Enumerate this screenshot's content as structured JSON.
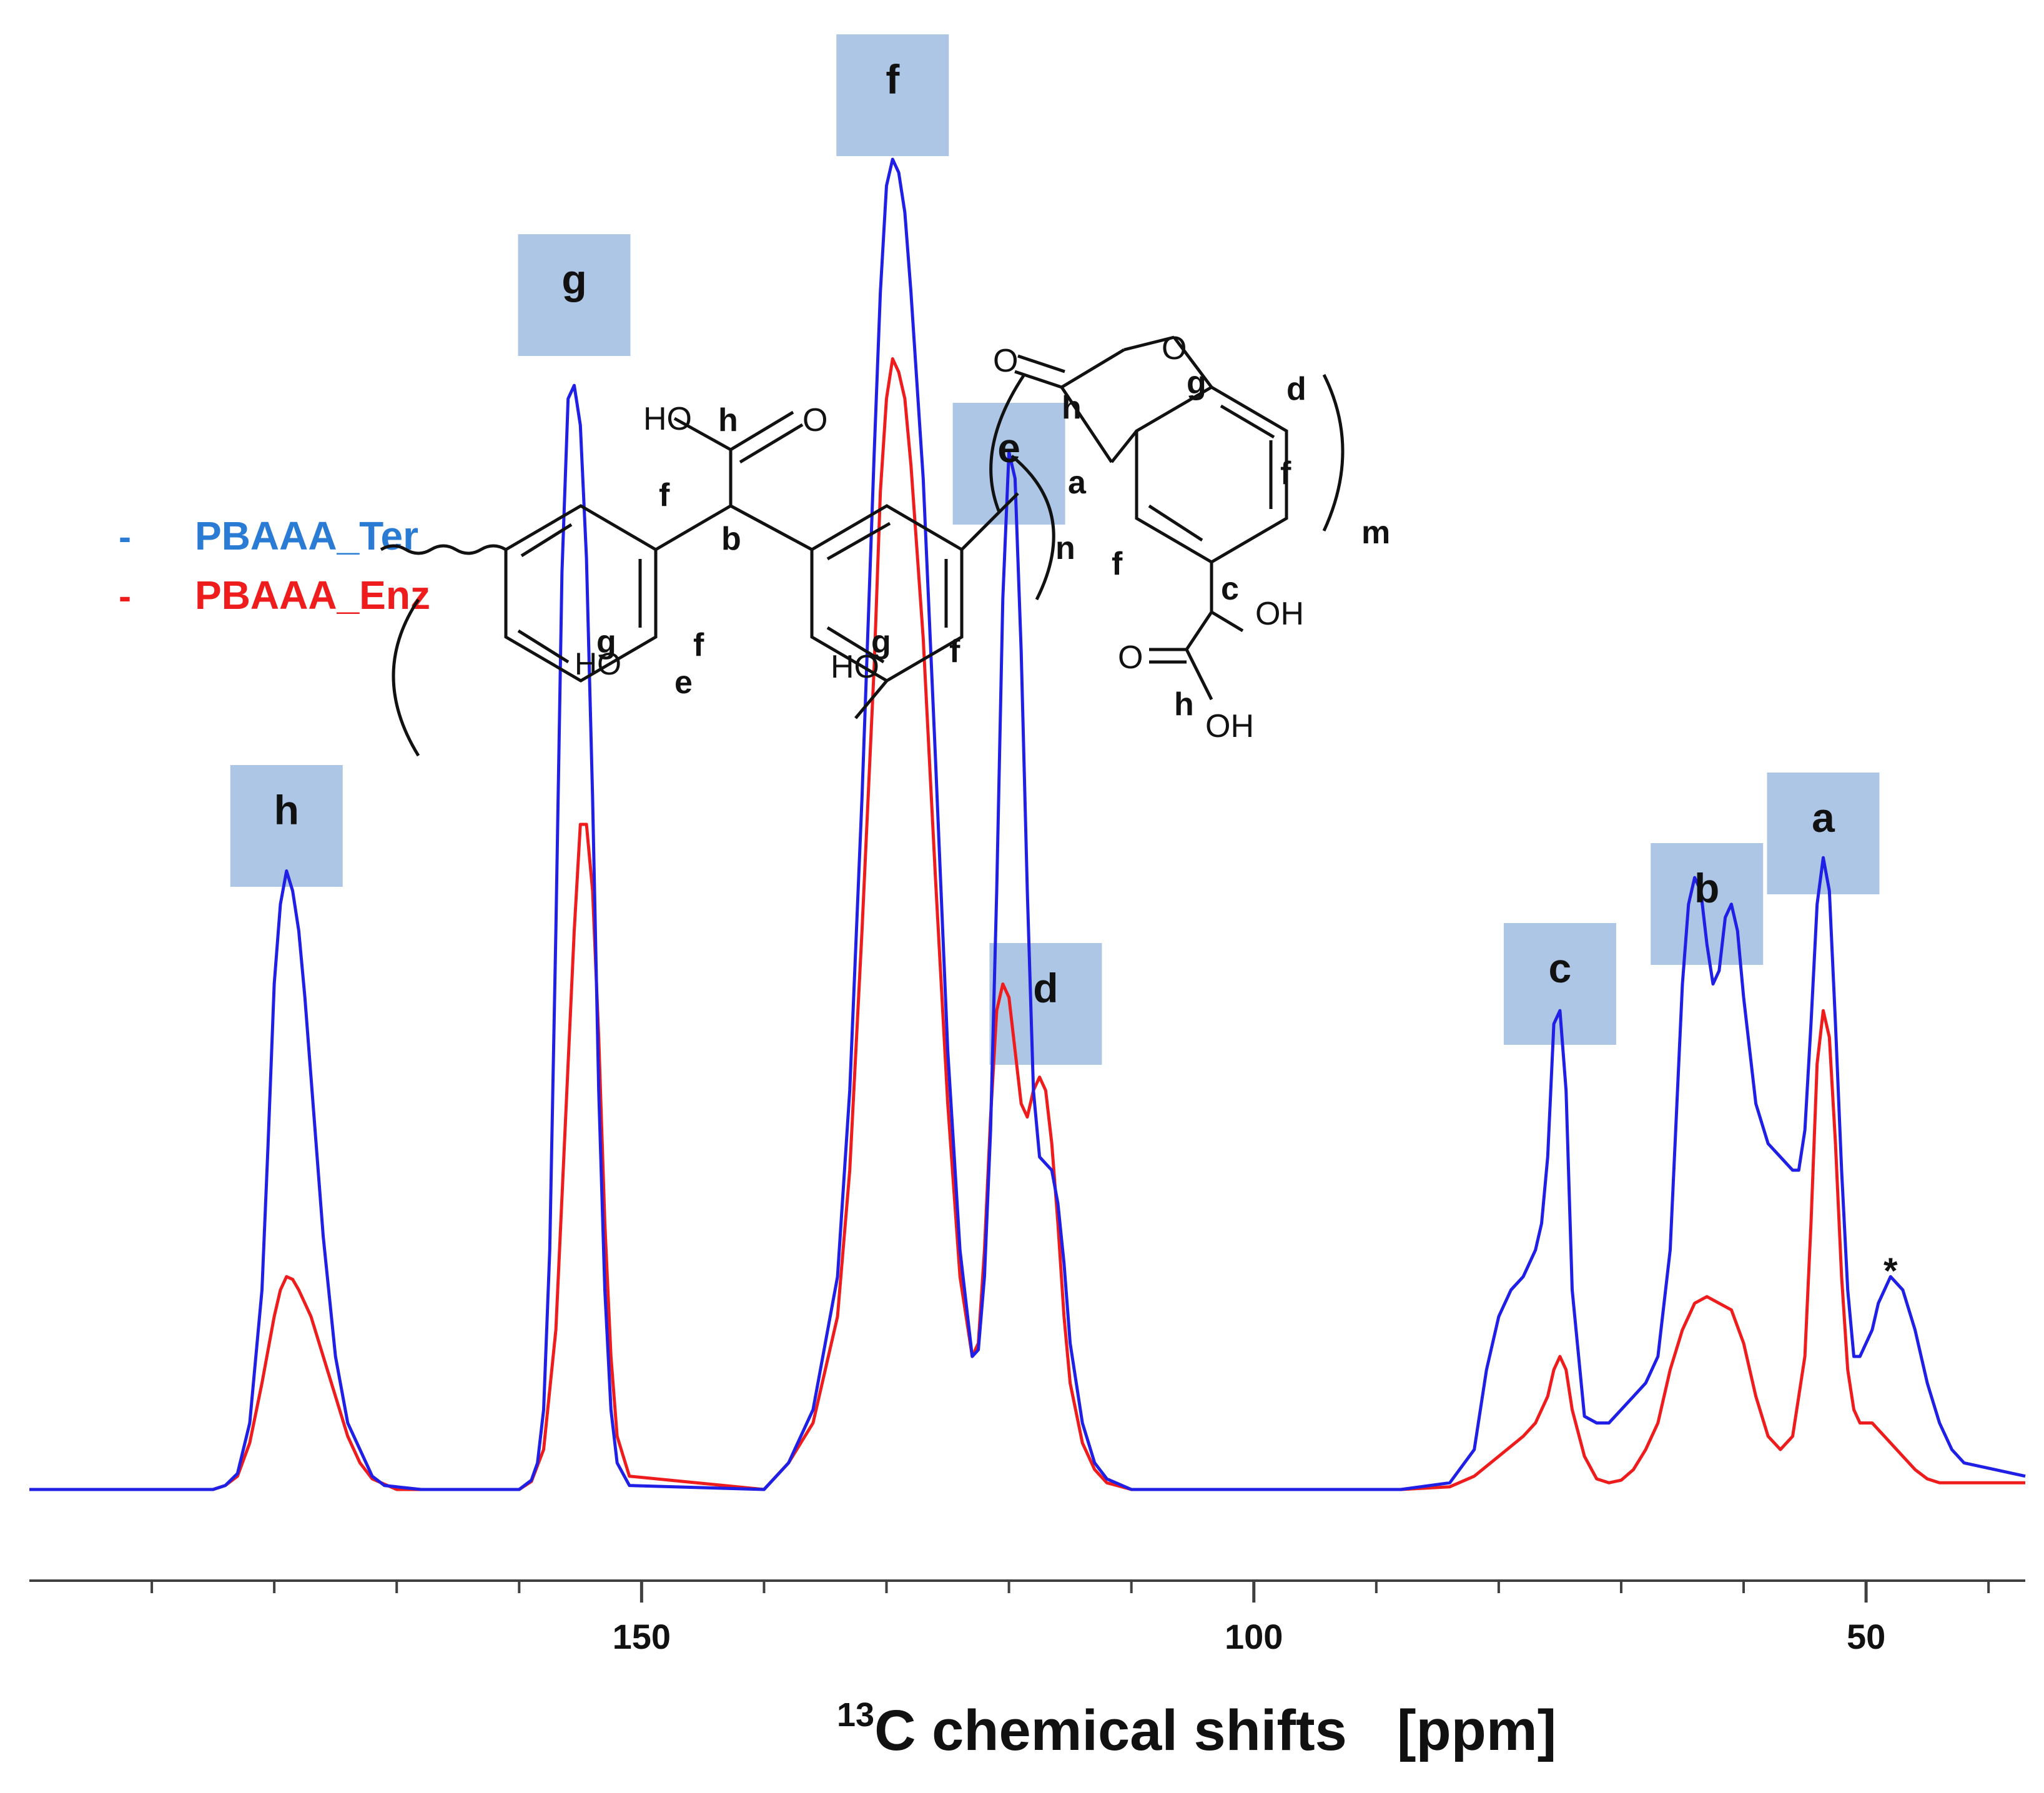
{
  "chart_data": {
    "type": "line",
    "title": "",
    "xlabel": "chemical shifts",
    "xlabel_superscript": "13",
    "xlabel_element": "C",
    "xunit": "[ppm]",
    "ylabel": "",
    "x_reversed": true,
    "xlim": [
      200,
      37
    ],
    "ylim": [
      0,
      1
    ],
    "xticks_major": [
      150,
      100,
      50
    ],
    "xticks_minor": [
      190,
      180,
      170,
      160,
      140,
      130,
      120,
      110,
      90,
      80,
      70,
      60,
      40
    ],
    "grid": false,
    "legend_position": "left",
    "series": [
      {
        "name": "PBAAA_Ter",
        "color": "#1f1fe6",
        "legend_color": "#2a7bd4",
        "points": [
          [
            200,
            0.0
          ],
          [
            185,
            0.0
          ],
          [
            184,
            0.003
          ],
          [
            183,
            0.012
          ],
          [
            182,
            0.05
          ],
          [
            181,
            0.15
          ],
          [
            180.5,
            0.26
          ],
          [
            180,
            0.38
          ],
          [
            179.5,
            0.44
          ],
          [
            179,
            0.465
          ],
          [
            178.5,
            0.45
          ],
          [
            178,
            0.42
          ],
          [
            177.5,
            0.37
          ],
          [
            177,
            0.31
          ],
          [
            176.5,
            0.25
          ],
          [
            176,
            0.19
          ],
          [
            175,
            0.1
          ],
          [
            174,
            0.05
          ],
          [
            173,
            0.03
          ],
          [
            172,
            0.01
          ],
          [
            171,
            0.003
          ],
          [
            168,
            0.0
          ],
          [
            160,
            0.0
          ],
          [
            159,
            0.007
          ],
          [
            158.5,
            0.02
          ],
          [
            158,
            0.06
          ],
          [
            157.5,
            0.18
          ],
          [
            157,
            0.42
          ],
          [
            156.5,
            0.69
          ],
          [
            156,
            0.82
          ],
          [
            155.5,
            0.83
          ],
          [
            155,
            0.8
          ],
          [
            154.5,
            0.7
          ],
          [
            154,
            0.52
          ],
          [
            153.5,
            0.3
          ],
          [
            153,
            0.15
          ],
          [
            152.5,
            0.06
          ],
          [
            152,
            0.02
          ],
          [
            151,
            0.003
          ],
          [
            140,
            0.0
          ],
          [
            138,
            0.02
          ],
          [
            136,
            0.06
          ],
          [
            134,
            0.16
          ],
          [
            133,
            0.3
          ],
          [
            132,
            0.52
          ],
          [
            131,
            0.78
          ],
          [
            130.5,
            0.9
          ],
          [
            130,
            0.98
          ],
          [
            129.5,
            1.0
          ],
          [
            129,
            0.99
          ],
          [
            128.5,
            0.96
          ],
          [
            128,
            0.9
          ],
          [
            127,
            0.76
          ],
          [
            126,
            0.55
          ],
          [
            125,
            0.33
          ],
          [
            124,
            0.18
          ],
          [
            123,
            0.1
          ],
          [
            122.5,
            0.105
          ],
          [
            122,
            0.16
          ],
          [
            121.5,
            0.27
          ],
          [
            121,
            0.45
          ],
          [
            120.5,
            0.67
          ],
          [
            120,
            0.78
          ],
          [
            119.5,
            0.76
          ],
          [
            119,
            0.63
          ],
          [
            118.5,
            0.45
          ],
          [
            118,
            0.3
          ],
          [
            117.5,
            0.25
          ],
          [
            117,
            0.245
          ],
          [
            116.5,
            0.24
          ],
          [
            116,
            0.215
          ],
          [
            115.5,
            0.17
          ],
          [
            115,
            0.11
          ],
          [
            114,
            0.05
          ],
          [
            113,
            0.02
          ],
          [
            112,
            0.008
          ],
          [
            110,
            0.0
          ],
          [
            88,
            0.0
          ],
          [
            84,
            0.005
          ],
          [
            82,
            0.03
          ],
          [
            81,
            0.09
          ],
          [
            80,
            0.13
          ],
          [
            79,
            0.15
          ],
          [
            78,
            0.16
          ],
          [
            77,
            0.18
          ],
          [
            76.5,
            0.2
          ],
          [
            76,
            0.25
          ],
          [
            75.5,
            0.35
          ],
          [
            75,
            0.36
          ],
          [
            74.5,
            0.3
          ],
          [
            74,
            0.15
          ],
          [
            73,
            0.055
          ],
          [
            72,
            0.05
          ],
          [
            71,
            0.05
          ],
          [
            70,
            0.06
          ],
          [
            69,
            0.07
          ],
          [
            68,
            0.08
          ],
          [
            67,
            0.1
          ],
          [
            66,
            0.18
          ],
          [
            65.5,
            0.28
          ],
          [
            65,
            0.38
          ],
          [
            64.5,
            0.44
          ],
          [
            64,
            0.46
          ],
          [
            63.5,
            0.45
          ],
          [
            63,
            0.41
          ],
          [
            62.5,
            0.38
          ],
          [
            62,
            0.39
          ],
          [
            61.5,
            0.43
          ],
          [
            61,
            0.44
          ],
          [
            60.5,
            0.42
          ],
          [
            60,
            0.37
          ],
          [
            59,
            0.29
          ],
          [
            58,
            0.26
          ],
          [
            57,
            0.25
          ],
          [
            56,
            0.24
          ],
          [
            55.5,
            0.24
          ],
          [
            55,
            0.27
          ],
          [
            54.5,
            0.35
          ],
          [
            54,
            0.44
          ],
          [
            53.5,
            0.475
          ],
          [
            53,
            0.45
          ],
          [
            52.5,
            0.35
          ],
          [
            52,
            0.24
          ],
          [
            51.5,
            0.15
          ],
          [
            51,
            0.1
          ],
          [
            50.5,
            0.1
          ],
          [
            50,
            0.11
          ],
          [
            49.5,
            0.12
          ],
          [
            49,
            0.14
          ],
          [
            48,
            0.16
          ],
          [
            47,
            0.15
          ],
          [
            46,
            0.12
          ],
          [
            45,
            0.08
          ],
          [
            44,
            0.05
          ],
          [
            43,
            0.03
          ],
          [
            42,
            0.02
          ],
          [
            37,
            0.01
          ]
        ]
      },
      {
        "name": "PBAAA_Enz",
        "color": "#ee1c1c",
        "legend_color": "#ee1c1c",
        "points": [
          [
            200,
            0.0
          ],
          [
            185,
            0.0
          ],
          [
            184,
            0.003
          ],
          [
            183,
            0.01
          ],
          [
            182,
            0.035
          ],
          [
            181,
            0.08
          ],
          [
            180,
            0.13
          ],
          [
            179.5,
            0.15
          ],
          [
            179,
            0.16
          ],
          [
            178.5,
            0.158
          ],
          [
            178,
            0.15
          ],
          [
            177,
            0.13
          ],
          [
            176,
            0.1
          ],
          [
            175,
            0.07
          ],
          [
            174,
            0.04
          ],
          [
            173,
            0.02
          ],
          [
            172,
            0.008
          ],
          [
            170,
            0.0
          ],
          [
            160,
            0.0
          ],
          [
            159,
            0.006
          ],
          [
            158,
            0.03
          ],
          [
            157,
            0.12
          ],
          [
            156.5,
            0.22
          ],
          [
            156,
            0.32
          ],
          [
            155.5,
            0.42
          ],
          [
            155,
            0.5
          ],
          [
            154.5,
            0.5
          ],
          [
            154,
            0.45
          ],
          [
            153.5,
            0.34
          ],
          [
            153,
            0.2
          ],
          [
            152.5,
            0.1
          ],
          [
            152,
            0.04
          ],
          [
            151,
            0.01
          ],
          [
            140,
            0.0
          ],
          [
            138,
            0.02
          ],
          [
            136,
            0.05
          ],
          [
            134,
            0.13
          ],
          [
            133,
            0.24
          ],
          [
            132,
            0.42
          ],
          [
            131,
            0.62
          ],
          [
            130.5,
            0.75
          ],
          [
            130,
            0.82
          ],
          [
            129.5,
            0.85
          ],
          [
            129,
            0.84
          ],
          [
            128.5,
            0.82
          ],
          [
            128,
            0.77
          ],
          [
            127,
            0.64
          ],
          [
            126,
            0.46
          ],
          [
            125,
            0.29
          ],
          [
            124,
            0.16
          ],
          [
            123,
            0.1
          ],
          [
            122.5,
            0.11
          ],
          [
            122,
            0.18
          ],
          [
            121.5,
            0.28
          ],
          [
            121,
            0.36
          ],
          [
            120.5,
            0.38
          ],
          [
            120,
            0.37
          ],
          [
            119.5,
            0.33
          ],
          [
            119,
            0.29
          ],
          [
            118.5,
            0.28
          ],
          [
            118,
            0.3
          ],
          [
            117.5,
            0.31
          ],
          [
            117,
            0.3
          ],
          [
            116.5,
            0.26
          ],
          [
            116,
            0.2
          ],
          [
            115.5,
            0.13
          ],
          [
            115,
            0.08
          ],
          [
            114,
            0.035
          ],
          [
            113,
            0.015
          ],
          [
            112,
            0.005
          ],
          [
            110,
            0.0
          ],
          [
            88,
            0.0
          ],
          [
            84,
            0.002
          ],
          [
            82,
            0.01
          ],
          [
            80,
            0.025
          ],
          [
            78,
            0.04
          ],
          [
            77,
            0.05
          ],
          [
            76,
            0.07
          ],
          [
            75.5,
            0.09
          ],
          [
            75,
            0.1
          ],
          [
            74.5,
            0.09
          ],
          [
            74,
            0.06
          ],
          [
            73,
            0.025
          ],
          [
            72,
            0.008
          ],
          [
            71,
            0.005
          ],
          [
            70,
            0.007
          ],
          [
            69,
            0.015
          ],
          [
            68,
            0.03
          ],
          [
            67,
            0.05
          ],
          [
            66,
            0.09
          ],
          [
            65,
            0.12
          ],
          [
            64,
            0.14
          ],
          [
            63,
            0.145
          ],
          [
            62,
            0.14
          ],
          [
            61,
            0.135
          ],
          [
            60,
            0.11
          ],
          [
            59,
            0.07
          ],
          [
            58,
            0.04
          ],
          [
            57,
            0.03
          ],
          [
            56,
            0.04
          ],
          [
            55,
            0.1
          ],
          [
            54.5,
            0.2
          ],
          [
            54,
            0.32
          ],
          [
            53.5,
            0.36
          ],
          [
            53,
            0.34
          ],
          [
            52.5,
            0.26
          ],
          [
            52,
            0.16
          ],
          [
            51.5,
            0.09
          ],
          [
            51,
            0.06
          ],
          [
            50.5,
            0.05
          ],
          [
            50,
            0.05
          ],
          [
            49.5,
            0.05
          ],
          [
            49,
            0.045
          ],
          [
            48,
            0.035
          ],
          [
            47,
            0.025
          ],
          [
            46,
            0.015
          ],
          [
            45,
            0.008
          ],
          [
            44,
            0.005
          ],
          [
            37,
            0.005
          ]
        ]
      }
    ],
    "annotations": [
      {
        "label": "h",
        "x": 179
      },
      {
        "label": "g",
        "x": 155.5
      },
      {
        "label": "f",
        "x": 129.5
      },
      {
        "label": "e",
        "x": 120
      },
      {
        "label": "d",
        "x": 117
      },
      {
        "label": "c",
        "x": 75
      },
      {
        "label": "b",
        "x": 63
      },
      {
        "label": "a",
        "x": 53.5
      },
      {
        "label": "*",
        "x": 48
      }
    ],
    "legend": [
      {
        "marker": "-",
        "label": "PBAAA_Ter"
      },
      {
        "marker": "-",
        "label": "PBAAA_Enz"
      }
    ],
    "structure": {
      "atoms": [
        "HO",
        "h",
        "O",
        "b",
        "f",
        "f",
        "HO",
        "g",
        "e",
        "HO",
        "g",
        "f",
        "O",
        "O",
        "h",
        "g",
        "d",
        "a",
        "n",
        "f",
        "f",
        "m",
        "c",
        "OH",
        "O",
        "h",
        "OH"
      ]
    }
  }
}
